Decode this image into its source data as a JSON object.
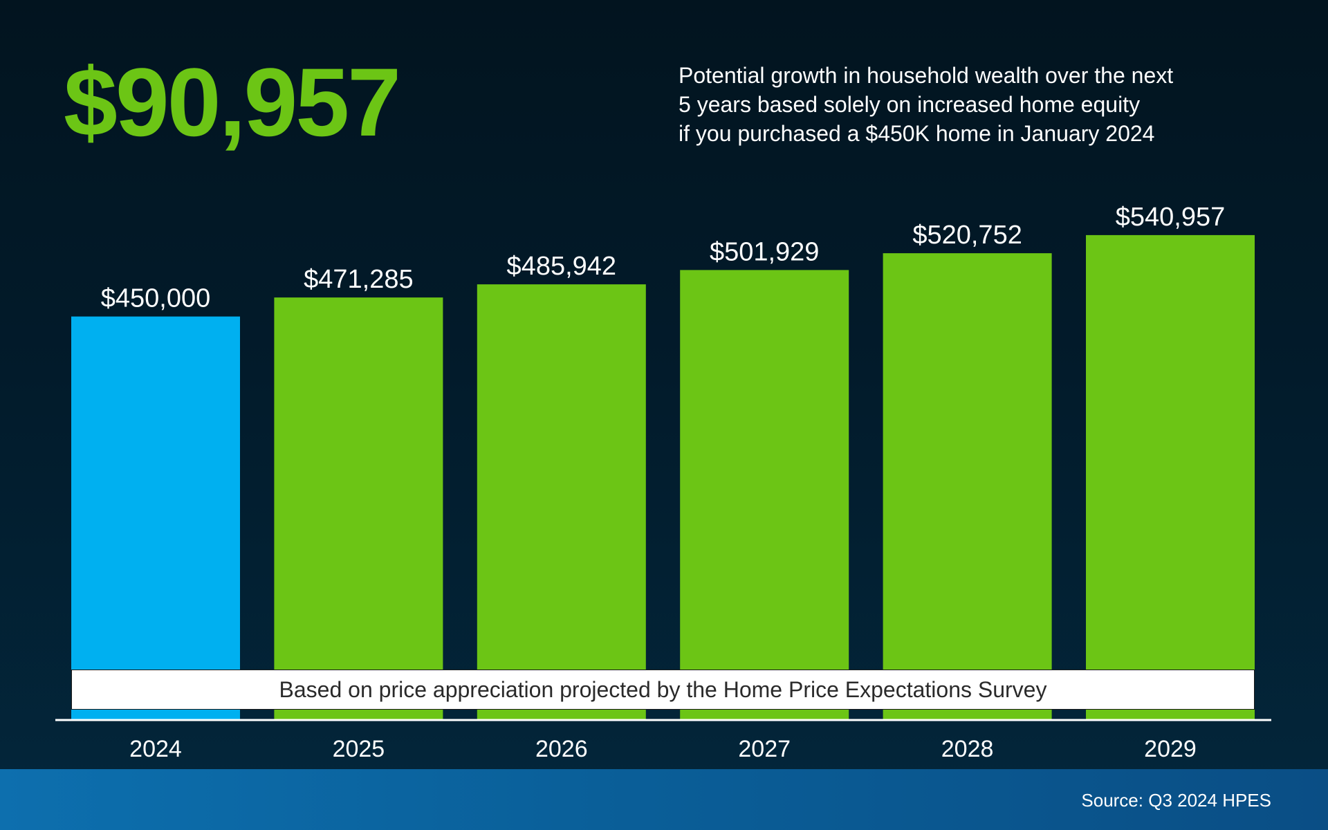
{
  "headline": "$90,957",
  "description_lines": [
    "Potential growth in household wealth over the next",
    "5 years based solely on increased home equity",
    "if you purchased a $450K home in January 2024"
  ],
  "footnote": "Based on price appreciation projected by the Home Price Expectations Survey",
  "source": "Source: Q3 2024 HPES",
  "colors": {
    "headline": "#6cc515",
    "initial_bar": "#00b0f0",
    "projected_bar": "#6cc515",
    "text": "#ffffff"
  },
  "chart_data": {
    "type": "bar",
    "categories": [
      "2024",
      "2025",
      "2026",
      "2027",
      "2028",
      "2029"
    ],
    "values": [
      450000,
      471285,
      485942,
      501929,
      520752,
      540957
    ],
    "data_labels": [
      "$450,000",
      "$471,285",
      "$485,942",
      "$501,929",
      "$520,752",
      "$540,957"
    ],
    "highlight_first": true,
    "ylim": [
      0,
      544000
    ],
    "title": "",
    "xlabel": "",
    "ylabel": "",
    "grid": false
  }
}
